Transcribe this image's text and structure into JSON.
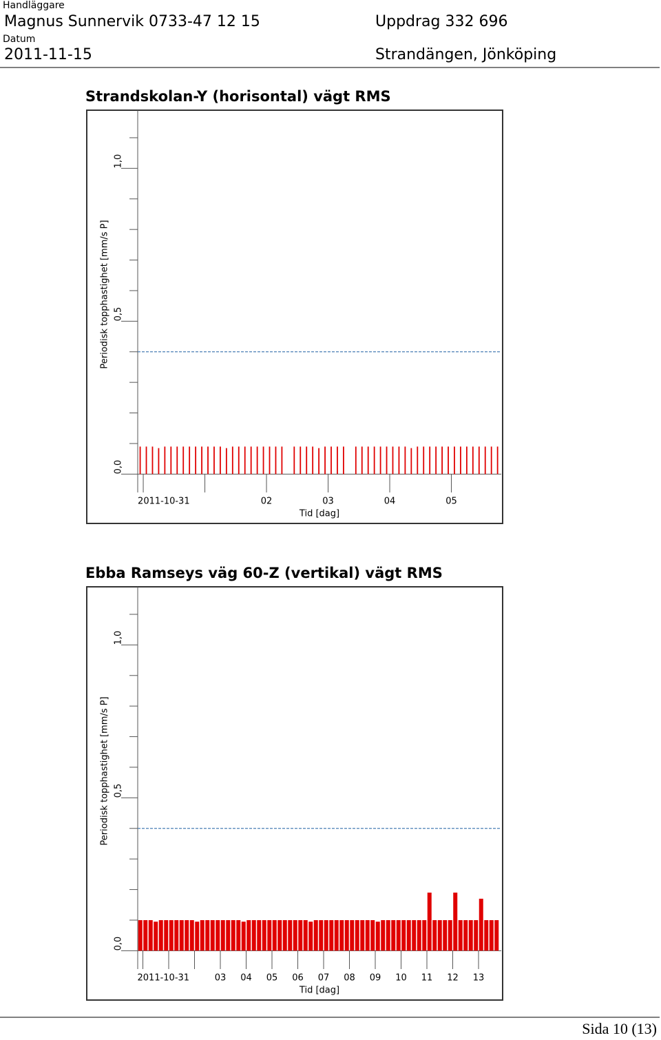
{
  "header": {
    "handlaggare_label": "Handläggare",
    "handlaggare": "Magnus Sunnervik 0733-47 12 15",
    "uppdrag": "Uppdrag 332 696",
    "datum_label": "Datum",
    "datum": "2011-11-15",
    "location": "Strandängen, Jönköping"
  },
  "chart_data": [
    {
      "type": "bar",
      "title": "Strandskolan-Y (horisontal) vägt RMS",
      "ylabel": "Periodisk topphastighet [mm/s P]",
      "xlabel": "Tid [dag]",
      "color": "#e00000",
      "x": [
        -0.05,
        0.05,
        0.15,
        0.25,
        0.35,
        0.45,
        0.55,
        0.65,
        0.75,
        0.85,
        0.95,
        1.05,
        1.15,
        1.25,
        1.35,
        1.45,
        1.55,
        1.65,
        1.75,
        1.85,
        1.95,
        2.05,
        2.15,
        2.25,
        2.45,
        2.55,
        2.65,
        2.75,
        2.85,
        2.95,
        3.05,
        3.15,
        3.25,
        3.45,
        3.55,
        3.65,
        3.75,
        3.85,
        3.95,
        4.05,
        4.15,
        4.25,
        4.35,
        4.45,
        4.55,
        4.65,
        4.75,
        4.85,
        4.95,
        5.05,
        5.15,
        5.25,
        5.35,
        5.45,
        5.55,
        5.65,
        5.75
      ],
      "values": [
        0.09,
        0.09,
        0.09,
        0.085,
        0.09,
        0.09,
        0.09,
        0.09,
        0.09,
        0.09,
        0.09,
        0.09,
        0.09,
        0.09,
        0.085,
        0.09,
        0.09,
        0.09,
        0.09,
        0.09,
        0.09,
        0.09,
        0.09,
        0.09,
        0.09,
        0.09,
        0.09,
        0.09,
        0.085,
        0.09,
        0.09,
        0.09,
        0.09,
        0.09,
        0.09,
        0.09,
        0.09,
        0.09,
        0.09,
        0.09,
        0.09,
        0.09,
        0.085,
        0.09,
        0.09,
        0.09,
        0.09,
        0.09,
        0.09,
        0.09,
        0.09,
        0.09,
        0.09,
        0.09,
        0.09,
        0.09,
        0.09
      ],
      "xlim": [
        -0.09,
        5.81
      ],
      "xticks": [
        {
          "value": 0,
          "label": "2011-10-31"
        },
        {
          "value": 2,
          "label": "02"
        },
        {
          "value": 3,
          "label": "03"
        },
        {
          "value": 4,
          "label": "04"
        },
        {
          "value": 5,
          "label": "05"
        }
      ],
      "xminorticks": [
        1
      ],
      "ylim": [
        -0.06,
        1.19
      ],
      "yticks": [
        {
          "value": 0,
          "label": "0,0"
        },
        {
          "value": 0.5,
          "label": "0,5"
        },
        {
          "value": 1,
          "label": "1,0"
        }
      ],
      "yminorticks": [
        0.1,
        0.2,
        0.3,
        0.4,
        0.6,
        0.7,
        0.8,
        0.9,
        1.1
      ],
      "threshold": 0.4,
      "threshold_color": "#4a7fb5"
    },
    {
      "type": "bar",
      "title": "Ebba Ramseys väg 60-Z (vertikal) vägt RMS",
      "ylabel": "Periodisk topphastighet [mm/s P]",
      "xlabel": "Tid [dag]",
      "color": "#e00000",
      "x": [
        -0.1,
        0.1,
        0.3,
        0.5,
        0.7,
        0.9,
        1.1,
        1.3,
        1.5,
        1.7,
        1.9,
        2.1,
        2.3,
        2.5,
        2.7,
        2.9,
        3.1,
        3.3,
        3.5,
        3.7,
        3.9,
        4.1,
        4.3,
        4.5,
        4.7,
        4.9,
        5.1,
        5.3,
        5.5,
        5.7,
        5.9,
        6.1,
        6.3,
        6.5,
        6.7,
        6.9,
        7.1,
        7.3,
        7.5,
        7.7,
        7.9,
        8.1,
        8.3,
        8.5,
        8.7,
        8.9,
        9.1,
        9.3,
        9.5,
        9.7,
        9.9,
        10.1,
        10.3,
        10.5,
        10.7,
        10.9,
        11.1,
        11.3,
        11.5,
        11.7,
        11.9,
        12.1,
        12.3,
        12.5,
        12.7,
        12.9,
        13.1,
        13.3,
        13.5,
        13.7
      ],
      "values": [
        0.1,
        0.1,
        0.1,
        0.095,
        0.1,
        0.1,
        0.1,
        0.1,
        0.1,
        0.1,
        0.1,
        0.095,
        0.1,
        0.1,
        0.1,
        0.1,
        0.1,
        0.1,
        0.1,
        0.1,
        0.095,
        0.1,
        0.1,
        0.1,
        0.1,
        0.1,
        0.1,
        0.1,
        0.1,
        0.1,
        0.1,
        0.1,
        0.1,
        0.095,
        0.1,
        0.1,
        0.1,
        0.1,
        0.1,
        0.1,
        0.1,
        0.1,
        0.1,
        0.1,
        0.1,
        0.1,
        0.095,
        0.1,
        0.1,
        0.1,
        0.1,
        0.1,
        0.1,
        0.1,
        0.1,
        0.1,
        0.19,
        0.1,
        0.1,
        0.1,
        0.1,
        0.19,
        0.1,
        0.1,
        0.1,
        0.1,
        0.17,
        0.1,
        0.1,
        0.1
      ],
      "xlim": [
        -0.2,
        13.88
      ],
      "xticks": [
        {
          "value": 0,
          "label": "2011-10-31"
        },
        {
          "value": 3,
          "label": "03"
        },
        {
          "value": 4,
          "label": "04"
        },
        {
          "value": 5,
          "label": "05"
        },
        {
          "value": 6,
          "label": "06"
        },
        {
          "value": 7,
          "label": "07"
        },
        {
          "value": 8,
          "label": "08"
        },
        {
          "value": 9,
          "label": "09"
        },
        10,
        11,
        12,
        13
      ],
      "xminorticks": [
        1,
        2
      ],
      "ylim": [
        -0.06,
        1.19
      ],
      "yticks": [
        {
          "value": 0,
          "label": "0,0"
        },
        {
          "value": 0.5,
          "label": "0,5"
        },
        {
          "value": 1,
          "label": "1,0"
        }
      ],
      "yminorticks": [
        0.1,
        0.2,
        0.3,
        0.4,
        0.6,
        0.7,
        0.8,
        0.9,
        1.1
      ],
      "threshold": 0.4,
      "threshold_color": "#4a7fb5"
    }
  ],
  "footer": {
    "page": "Sida 10 (13)"
  }
}
